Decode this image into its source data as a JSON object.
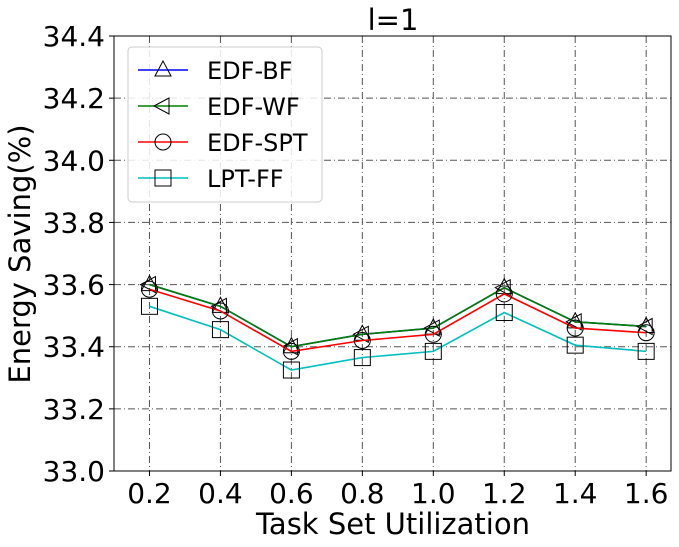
{
  "chart_data": {
    "type": "line",
    "title": "l=1",
    "xlabel": "Task Set Utilization",
    "ylabel": "Energy Saving(%)",
    "x": [
      0.2,
      0.4,
      0.6,
      0.8,
      1.0,
      1.2,
      1.4,
      1.6
    ],
    "x_tick_labels": [
      "0.2",
      "0.4",
      "0.6",
      "0.8",
      "1.0",
      "1.2",
      "1.4",
      "1.6"
    ],
    "xlim": [
      0.1,
      1.67
    ],
    "ylim": [
      33.0,
      34.4
    ],
    "y_ticks": [
      33.0,
      33.2,
      33.4,
      33.6,
      33.8,
      34.0,
      34.2,
      34.4
    ],
    "y_tick_labels": [
      "33.0",
      "33.2",
      "33.4",
      "33.6",
      "33.8",
      "34.0",
      "34.2",
      "34.4"
    ],
    "grid": true,
    "legend_position": "top-left",
    "series": [
      {
        "name": "EDF-BF",
        "color": "#0000ff",
        "marker": "triangle-up",
        "values": [
          33.6,
          33.53,
          33.4,
          33.44,
          33.46,
          33.59,
          33.48,
          33.465
        ]
      },
      {
        "name": "EDF-WF",
        "color": "#008000",
        "marker": "triangle-left",
        "values": [
          33.6,
          33.53,
          33.4,
          33.44,
          33.46,
          33.59,
          33.48,
          33.465
        ]
      },
      {
        "name": "EDF-SPT",
        "color": "#ff0000",
        "marker": "circle",
        "values": [
          33.585,
          33.515,
          33.385,
          33.42,
          33.44,
          33.57,
          33.46,
          33.445
        ]
      },
      {
        "name": "LPT-FF",
        "color": "#00bfbf",
        "marker": "square",
        "values": [
          33.53,
          33.455,
          33.325,
          33.365,
          33.385,
          33.51,
          33.405,
          33.385
        ]
      }
    ]
  }
}
